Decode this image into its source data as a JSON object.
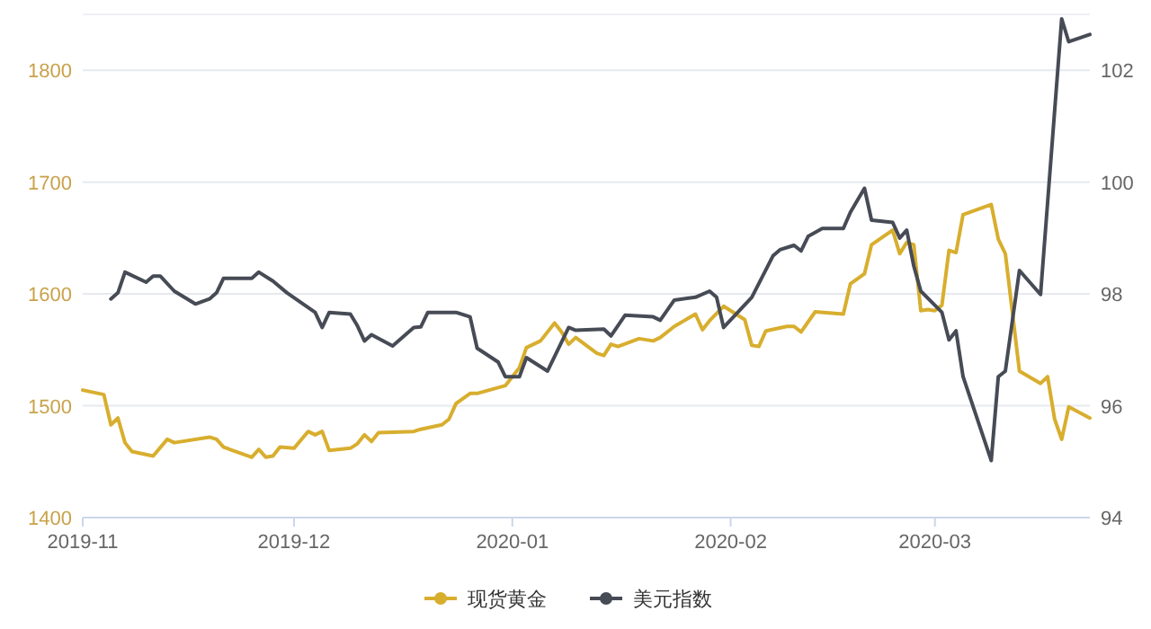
{
  "chart_data": {
    "type": "line",
    "xlim": [
      "2019-11-01",
      "2020-03-23"
    ],
    "xticks": [
      "2019-11",
      "2019-12",
      "2020-01",
      "2020-02",
      "2020-03"
    ],
    "ylim": [
      1400,
      1850
    ],
    "yticks": [
      1400,
      1500,
      1600,
      1700,
      1800
    ],
    "y2lim": [
      94,
      103
    ],
    "y2ticks": [
      94,
      96,
      98,
      100,
      102
    ],
    "grid": "y",
    "legend": "bottom",
    "line_style": "solid",
    "series": [
      {
        "name": "现货黄金",
        "color": "#d8ae2e",
        "x": [
          "2019-11-01",
          "2019-11-04",
          "2019-11-05",
          "2019-11-06",
          "2019-11-07",
          "2019-11-08",
          "2019-11-11",
          "2019-11-13",
          "2019-11-14",
          "2019-11-19",
          "2019-11-20",
          "2019-11-21",
          "2019-11-25",
          "2019-11-26",
          "2019-11-27",
          "2019-11-28",
          "2019-11-29",
          "2019-12-01",
          "2019-12-03",
          "2019-12-04",
          "2019-12-05",
          "2019-12-06",
          "2019-12-09",
          "2019-12-10",
          "2019-12-11",
          "2019-12-12",
          "2019-12-13",
          "2019-12-18",
          "2019-12-19",
          "2019-12-22",
          "2019-12-23",
          "2019-12-24",
          "2019-12-26",
          "2019-12-27",
          "2019-12-31",
          "2020-01-02",
          "2020-01-03",
          "2020-01-05",
          "2020-01-07",
          "2020-01-08",
          "2020-01-09",
          "2020-01-10",
          "2020-01-13",
          "2020-01-14",
          "2020-01-15",
          "2020-01-16",
          "2020-01-19",
          "2020-01-21",
          "2020-01-22",
          "2020-01-24",
          "2020-01-27",
          "2020-01-28",
          "2020-01-29",
          "2020-01-31",
          "2020-02-01",
          "2020-02-03",
          "2020-02-04",
          "2020-02-05",
          "2020-02-06",
          "2020-02-09",
          "2020-02-10",
          "2020-02-11",
          "2020-02-13",
          "2020-02-17",
          "2020-02-18",
          "2020-02-20",
          "2020-02-21",
          "2020-02-24",
          "2020-02-25",
          "2020-02-26",
          "2020-02-27",
          "2020-02-28",
          "2020-02-29",
          "2020-03-01",
          "2020-03-02",
          "2020-03-03",
          "2020-03-04",
          "2020-03-05",
          "2020-03-09",
          "2020-03-10",
          "2020-03-11",
          "2020-03-13",
          "2020-03-16",
          "2020-03-17",
          "2020-03-18",
          "2020-03-19",
          "2020-03-20",
          "2020-03-23"
        ],
        "values": [
          1514,
          1510,
          1483,
          1489,
          1467,
          1459,
          1455,
          1470,
          1467,
          1472,
          1470,
          1463,
          1454,
          1461,
          1454,
          1455,
          1463,
          1462,
          1477,
          1474,
          1477,
          1460,
          1462,
          1466,
          1474,
          1468,
          1476,
          1477,
          1479,
          1483,
          1488,
          1502,
          1511,
          1511,
          1518,
          1534,
          1552,
          1558,
          1574,
          1566,
          1555,
          1561,
          1547,
          1545,
          1555,
          1553,
          1560,
          1558,
          1561,
          1571,
          1582,
          1568,
          1576,
          1589,
          1585,
          1577,
          1554,
          1553,
          1567,
          1571,
          1571,
          1566,
          1584,
          1582,
          1609,
          1618,
          1644,
          1657,
          1636,
          1646,
          1644,
          1585,
          1586,
          1585,
          1590,
          1639,
          1637,
          1671,
          1680,
          1649,
          1636,
          1531,
          1520,
          1526,
          1488,
          1470,
          1499,
          1489
        ]
      },
      {
        "name": "美元指数",
        "color": "#464b55",
        "axis": "y2",
        "x": [
          "2019-11-05",
          "2019-11-06",
          "2019-11-07",
          "2019-11-10",
          "2019-11-11",
          "2019-11-12",
          "2019-11-14",
          "2019-11-17",
          "2019-11-19",
          "2019-11-20",
          "2019-11-21",
          "2019-11-25",
          "2019-11-26",
          "2019-11-28",
          "2019-11-30",
          "2019-12-04",
          "2019-12-05",
          "2019-12-06",
          "2019-12-09",
          "2019-12-10",
          "2019-12-11",
          "2019-12-12",
          "2019-12-15",
          "2019-12-18",
          "2019-12-19",
          "2019-12-20",
          "2019-12-24",
          "2019-12-26",
          "2019-12-27",
          "2019-12-30",
          "2019-12-31",
          "2020-01-02",
          "2020-01-03",
          "2020-01-06",
          "2020-01-09",
          "2020-01-10",
          "2020-01-14",
          "2020-01-15",
          "2020-01-17",
          "2020-01-21",
          "2020-01-22",
          "2020-01-24",
          "2020-01-27",
          "2020-01-29",
          "2020-01-30",
          "2020-01-31",
          "2020-02-04",
          "2020-02-07",
          "2020-02-08",
          "2020-02-10",
          "2020-02-11",
          "2020-02-12",
          "2020-02-14",
          "2020-02-17",
          "2020-02-18",
          "2020-02-20",
          "2020-02-21",
          "2020-02-24",
          "2020-02-25",
          "2020-02-26",
          "2020-02-27",
          "2020-02-28",
          "2020-03-02",
          "2020-03-03",
          "2020-03-04",
          "2020-03-05",
          "2020-03-09",
          "2020-03-10",
          "2020-03-11",
          "2020-03-13",
          "2020-03-16",
          "2020-03-19",
          "2020-03-20",
          "2020-03-23"
        ],
        "values": [
          97.91,
          98.02,
          98.39,
          98.21,
          98.32,
          98.32,
          98.05,
          97.82,
          97.91,
          98.02,
          98.28,
          98.28,
          98.39,
          98.23,
          98.02,
          97.67,
          97.4,
          97.67,
          97.64,
          97.43,
          97.16,
          97.27,
          97.07,
          97.4,
          97.41,
          97.67,
          97.67,
          97.59,
          97.03,
          96.78,
          96.52,
          96.52,
          96.86,
          96.62,
          97.4,
          97.35,
          97.37,
          97.25,
          97.62,
          97.59,
          97.53,
          97.89,
          97.94,
          98.05,
          97.94,
          97.4,
          97.94,
          98.68,
          98.79,
          98.87,
          98.77,
          99.03,
          99.17,
          99.17,
          99.46,
          99.89,
          99.32,
          99.28,
          99.0,
          99.14,
          98.5,
          98.05,
          97.67,
          97.18,
          97.34,
          96.52,
          95.02,
          96.52,
          96.62,
          98.42,
          97.99,
          102.92,
          102.51,
          102.64
        ]
      }
    ]
  }
}
